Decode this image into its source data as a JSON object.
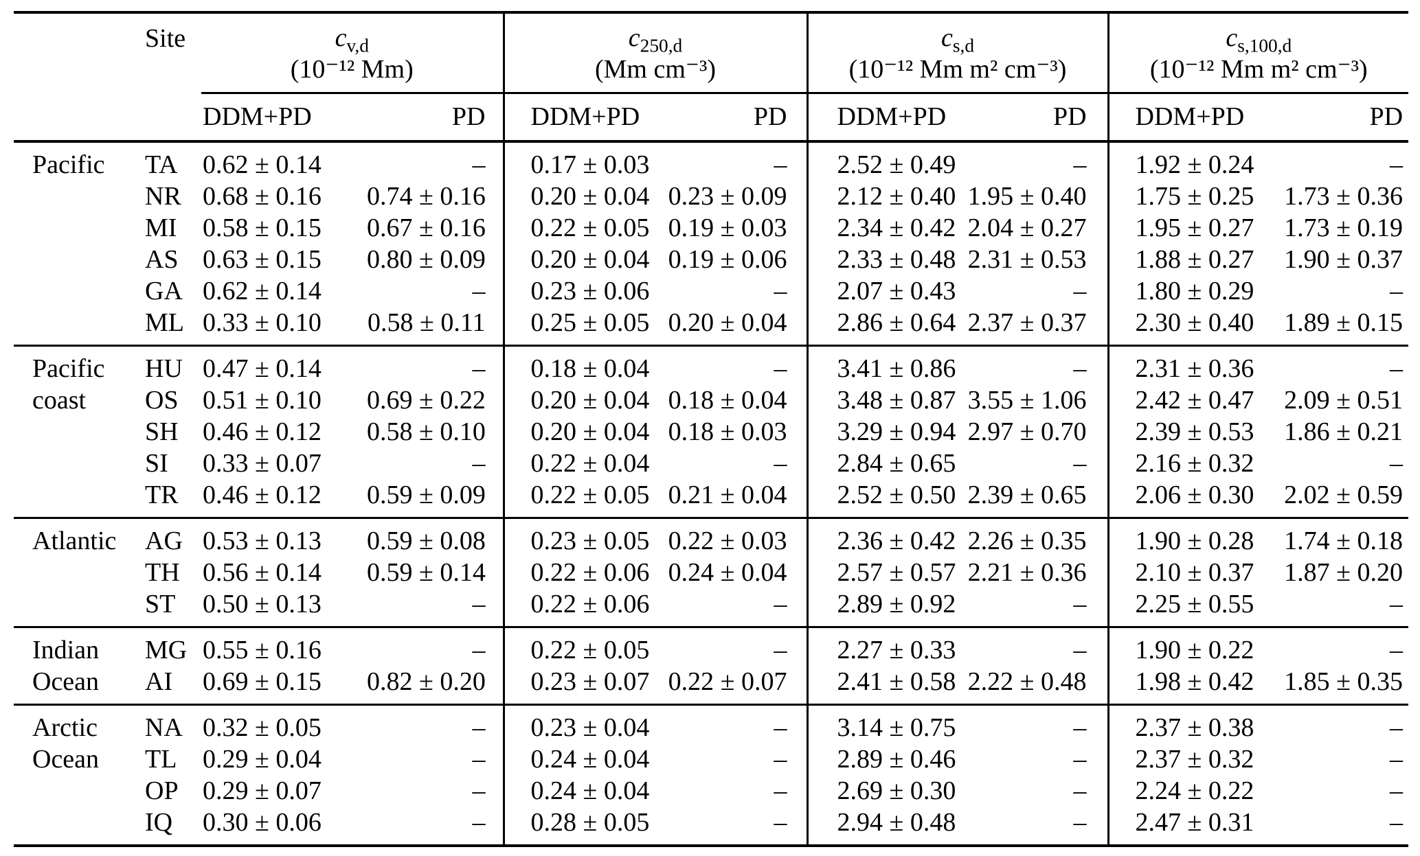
{
  "table": {
    "site_header": "Site",
    "subheader": {
      "ddm": "DDM+PD",
      "pd": "PD"
    },
    "columns": [
      {
        "symbol": "c",
        "sub": "v,d",
        "unit": "(10⁻¹² Mm)"
      },
      {
        "symbol": "c",
        "sub": "250,d",
        "unit": "(Mm cm⁻³)"
      },
      {
        "symbol": "c",
        "sub": "s,d",
        "unit": "(10⁻¹² Mm m² cm⁻³)"
      },
      {
        "symbol": "c",
        "sub": "s,100,d",
        "unit": "(10⁻¹² Mm m² cm⁻³)"
      }
    ],
    "sections": [
      {
        "group": [
          "Pacific"
        ],
        "rows": [
          {
            "site": "TA",
            "values": [
              "0.62 ± 0.14",
              "–",
              "0.17 ± 0.03",
              "–",
              "2.52 ± 0.49",
              "–",
              "1.92 ± 0.24",
              "–"
            ]
          },
          {
            "site": "NR",
            "values": [
              "0.68 ± 0.16",
              "0.74 ± 0.16",
              "0.20 ± 0.04",
              "0.23 ± 0.09",
              "2.12 ± 0.40",
              "1.95 ± 0.40",
              "1.75 ± 0.25",
              "1.73 ± 0.36"
            ]
          },
          {
            "site": "MI",
            "values": [
              "0.58 ± 0.15",
              "0.67 ± 0.16",
              "0.22 ± 0.05",
              "0.19 ± 0.03",
              "2.34 ± 0.42",
              "2.04 ± 0.27",
              "1.95 ± 0.27",
              "1.73 ± 0.19"
            ]
          },
          {
            "site": "AS",
            "values": [
              "0.63 ± 0.15",
              "0.80 ± 0.09",
              "0.20 ± 0.04",
              "0.19 ± 0.06",
              "2.33 ± 0.48",
              "2.31 ± 0.53",
              "1.88 ± 0.27",
              "1.90 ± 0.37"
            ]
          },
          {
            "site": "GA",
            "values": [
              "0.62 ± 0.14",
              "–",
              "0.23 ± 0.06",
              "–",
              "2.07 ± 0.43",
              "–",
              "1.80 ± 0.29",
              "–"
            ]
          },
          {
            "site": "ML",
            "values": [
              "0.33 ± 0.10",
              "0.58 ± 0.11",
              "0.25 ± 0.05",
              "0.20 ± 0.04",
              "2.86 ± 0.64",
              "2.37 ± 0.37",
              "2.30 ± 0.40",
              "1.89 ± 0.15"
            ]
          }
        ]
      },
      {
        "group": [
          "Pacific",
          "coast"
        ],
        "rows": [
          {
            "site": "HU",
            "values": [
              "0.47 ± 0.14",
              "–",
              "0.18 ± 0.04",
              "–",
              "3.41 ± 0.86",
              "–",
              "2.31 ± 0.36",
              "–"
            ]
          },
          {
            "site": "OS",
            "values": [
              "0.51 ± 0.10",
              "0.69 ± 0.22",
              "0.20 ± 0.04",
              "0.18 ± 0.04",
              "3.48 ± 0.87",
              "3.55 ± 1.06",
              "2.42 ± 0.47",
              "2.09 ± 0.51"
            ]
          },
          {
            "site": "SH",
            "values": [
              "0.46 ± 0.12",
              "0.58 ± 0.10",
              "0.20 ± 0.04",
              "0.18 ± 0.03",
              "3.29 ± 0.94",
              "2.97 ± 0.70",
              "2.39 ± 0.53",
              "1.86 ± 0.21"
            ]
          },
          {
            "site": "SI",
            "values": [
              "0.33 ± 0.07",
              "–",
              "0.22 ± 0.04",
              "–",
              "2.84 ± 0.65",
              "–",
              "2.16 ± 0.32",
              "–"
            ]
          },
          {
            "site": "TR",
            "values": [
              "0.46 ± 0.12",
              "0.59 ± 0.09",
              "0.22 ± 0.05",
              "0.21 ± 0.04",
              "2.52 ± 0.50",
              "2.39 ± 0.65",
              "2.06 ± 0.30",
              "2.02 ± 0.59"
            ]
          }
        ]
      },
      {
        "group": [
          "Atlantic"
        ],
        "rows": [
          {
            "site": "AG",
            "values": [
              "0.53 ± 0.13",
              "0.59 ± 0.08",
              "0.23 ± 0.05",
              "0.22 ± 0.03",
              "2.36 ± 0.42",
              "2.26 ± 0.35",
              "1.90 ± 0.28",
              "1.74 ± 0.18"
            ]
          },
          {
            "site": "TH",
            "values": [
              "0.56 ± 0.14",
              "0.59 ± 0.14",
              "0.22 ± 0.06",
              "0.24 ± 0.04",
              "2.57 ± 0.57",
              "2.21 ± 0.36",
              "2.10 ± 0.37",
              "1.87 ± 0.20"
            ]
          },
          {
            "site": "ST",
            "values": [
              "0.50 ± 0.13",
              "–",
              "0.22 ± 0.06",
              "–",
              "2.89 ± 0.92",
              "–",
              "2.25 ± 0.55",
              "–"
            ]
          }
        ]
      },
      {
        "group": [
          "Indian",
          "Ocean"
        ],
        "rows": [
          {
            "site": "MG",
            "values": [
              "0.55 ± 0.16",
              "–",
              "0.22 ± 0.05",
              "–",
              "2.27 ± 0.33",
              "–",
              "1.90 ± 0.22",
              "–"
            ]
          },
          {
            "site": "AI",
            "values": [
              "0.69 ± 0.15",
              "0.82 ± 0.20",
              "0.23 ± 0.07",
              "0.22 ± 0.07",
              "2.41 ± 0.58",
              "2.22 ± 0.48",
              "1.98 ± 0.42",
              "1.85 ± 0.35"
            ]
          }
        ]
      },
      {
        "group": [
          "Arctic",
          "Ocean"
        ],
        "rows": [
          {
            "site": "NA",
            "values": [
              "0.32 ± 0.05",
              "–",
              "0.23 ± 0.04",
              "–",
              "3.14 ± 0.75",
              "–",
              "2.37 ± 0.38",
              "–"
            ]
          },
          {
            "site": "TL",
            "values": [
              "0.29 ± 0.04",
              "–",
              "0.24 ± 0.04",
              "–",
              "2.89 ± 0.46",
              "–",
              "2.37 ± 0.32",
              "–"
            ]
          },
          {
            "site": "OP",
            "values": [
              "0.29 ± 0.07",
              "–",
              "0.24 ± 0.04",
              "–",
              "2.69 ± 0.30",
              "–",
              "2.24 ± 0.22",
              "–"
            ]
          },
          {
            "site": "IQ",
            "values": [
              "0.30 ± 0.06",
              "–",
              "0.28 ± 0.05",
              "–",
              "2.94 ± 0.48",
              "–",
              "2.47 ± 0.31",
              "–"
            ]
          }
        ]
      }
    ]
  },
  "colors": {
    "text": "#000000",
    "rule": "#000000",
    "background": "#ffffff"
  }
}
